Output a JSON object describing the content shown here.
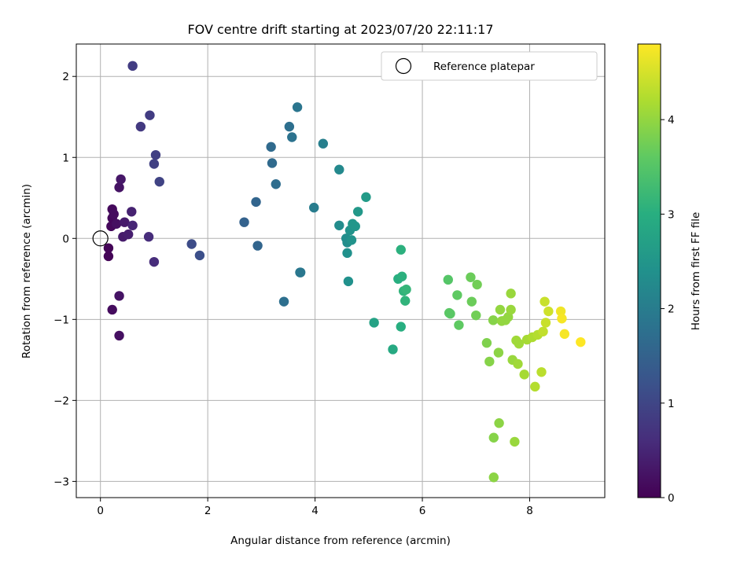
{
  "chart_data": {
    "type": "scatter",
    "title": "FOV centre drift starting at 2023/07/20 22:11:17",
    "xlabel": "Angular distance from reference (arcmin)",
    "ylabel": "Rotation from reference (arcmin)",
    "xlim": [
      -0.45,
      9.4
    ],
    "ylim": [
      -3.2,
      2.4
    ],
    "xticks": [
      0,
      2,
      4,
      6,
      8
    ],
    "yticks": [
      -3,
      -2,
      -1,
      0,
      1,
      2
    ],
    "xtick_labels": [
      "0",
      "2",
      "4",
      "6",
      "8"
    ],
    "ytick_labels": [
      "−3",
      "−2",
      "−1",
      "0",
      "1",
      "2"
    ],
    "grid": true,
    "legend": {
      "placement": "top-right",
      "entries": [
        "Reference platepar"
      ]
    },
    "reference_point": {
      "x": 0,
      "y": 0
    },
    "colorbar": {
      "label": "Hours from first FF file",
      "range": [
        0,
        4.8
      ],
      "ticks": [
        0,
        1,
        2,
        3,
        4
      ],
      "tick_labels": [
        "0",
        "1",
        "2",
        "3",
        "4"
      ],
      "colormap": "viridis"
    },
    "points": [
      {
        "x": 0.15,
        "y": -0.22,
        "c": 0.05
      },
      {
        "x": 0.15,
        "y": -0.12,
        "c": 0.05
      },
      {
        "x": 0.2,
        "y": 0.15,
        "c": 0.1
      },
      {
        "x": 0.22,
        "y": 0.25,
        "c": 0.1
      },
      {
        "x": 0.22,
        "y": 0.36,
        "c": 0.12
      },
      {
        "x": 0.25,
        "y": 0.3,
        "c": 0.15
      },
      {
        "x": 0.3,
        "y": 0.18,
        "c": 0.2
      },
      {
        "x": 0.35,
        "y": 0.63,
        "c": 0.25
      },
      {
        "x": 0.38,
        "y": 0.73,
        "c": 0.3
      },
      {
        "x": 0.22,
        "y": -0.88,
        "c": 0.15
      },
      {
        "x": 0.35,
        "y": -0.71,
        "c": 0.25
      },
      {
        "x": 0.35,
        "y": -1.2,
        "c": 0.2
      },
      {
        "x": 0.45,
        "y": 0.2,
        "c": 0.35
      },
      {
        "x": 0.42,
        "y": 0.02,
        "c": 0.35
      },
      {
        "x": 0.52,
        "y": 0.05,
        "c": 0.4
      },
      {
        "x": 0.58,
        "y": 0.33,
        "c": 0.45
      },
      {
        "x": 0.6,
        "y": 0.16,
        "c": 0.5
      },
      {
        "x": 0.9,
        "y": 0.02,
        "c": 0.6
      },
      {
        "x": 1.0,
        "y": -0.29,
        "c": 0.6
      },
      {
        "x": 0.6,
        "y": 2.13,
        "c": 0.85
      },
      {
        "x": 0.75,
        "y": 1.38,
        "c": 0.8
      },
      {
        "x": 0.92,
        "y": 1.52,
        "c": 0.85
      },
      {
        "x": 1.03,
        "y": 1.03,
        "c": 0.9
      },
      {
        "x": 1.0,
        "y": 0.92,
        "c": 0.9
      },
      {
        "x": 1.1,
        "y": 0.7,
        "c": 0.95
      },
      {
        "x": 1.7,
        "y": -0.07,
        "c": 1.1
      },
      {
        "x": 1.85,
        "y": -0.21,
        "c": 1.15
      },
      {
        "x": 2.68,
        "y": 0.2,
        "c": 1.5
      },
      {
        "x": 2.9,
        "y": 0.45,
        "c": 1.55
      },
      {
        "x": 2.93,
        "y": -0.09,
        "c": 1.55
      },
      {
        "x": 3.18,
        "y": 1.13,
        "c": 1.65
      },
      {
        "x": 3.2,
        "y": 0.93,
        "c": 1.65
      },
      {
        "x": 3.27,
        "y": 0.67,
        "c": 1.7
      },
      {
        "x": 3.42,
        "y": -0.78,
        "c": 1.75
      },
      {
        "x": 3.52,
        "y": 1.38,
        "c": 1.75
      },
      {
        "x": 3.57,
        "y": 1.25,
        "c": 1.8
      },
      {
        "x": 3.67,
        "y": 1.62,
        "c": 1.85
      },
      {
        "x": 3.72,
        "y": -0.42,
        "c": 1.9
      },
      {
        "x": 3.73,
        "y": -0.42,
        "c": 1.9
      },
      {
        "x": 3.98,
        "y": 0.38,
        "c": 2.0
      },
      {
        "x": 4.15,
        "y": 1.17,
        "c": 2.05
      },
      {
        "x": 4.45,
        "y": 0.85,
        "c": 2.25
      },
      {
        "x": 4.45,
        "y": 0.16,
        "c": 2.3
      },
      {
        "x": 4.58,
        "y": 0.0,
        "c": 2.35
      },
      {
        "x": 4.6,
        "y": -0.05,
        "c": 2.35
      },
      {
        "x": 4.6,
        "y": -0.18,
        "c": 2.4
      },
      {
        "x": 4.62,
        "y": -0.53,
        "c": 2.4
      },
      {
        "x": 4.65,
        "y": 0.1,
        "c": 2.45
      },
      {
        "x": 4.68,
        "y": -0.02,
        "c": 2.45
      },
      {
        "x": 4.7,
        "y": 0.18,
        "c": 2.5
      },
      {
        "x": 4.75,
        "y": 0.15,
        "c": 2.5
      },
      {
        "x": 4.8,
        "y": 0.33,
        "c": 2.55
      },
      {
        "x": 4.95,
        "y": 0.51,
        "c": 2.6
      },
      {
        "x": 5.1,
        "y": -1.04,
        "c": 2.75
      },
      {
        "x": 5.45,
        "y": -1.37,
        "c": 2.9
      },
      {
        "x": 5.55,
        "y": -0.5,
        "c": 3.0
      },
      {
        "x": 5.6,
        "y": -1.09,
        "c": 3.0
      },
      {
        "x": 5.6,
        "y": -0.14,
        "c": 3.05
      },
      {
        "x": 5.62,
        "y": -0.47,
        "c": 3.05
      },
      {
        "x": 5.65,
        "y": -0.65,
        "c": 3.1
      },
      {
        "x": 5.68,
        "y": -0.77,
        "c": 3.1
      },
      {
        "x": 5.7,
        "y": -0.63,
        "c": 3.15
      },
      {
        "x": 6.48,
        "y": -0.51,
        "c": 3.5
      },
      {
        "x": 6.5,
        "y": -0.92,
        "c": 3.55
      },
      {
        "x": 6.52,
        "y": -0.93,
        "c": 3.55
      },
      {
        "x": 6.65,
        "y": -0.7,
        "c": 3.6
      },
      {
        "x": 6.68,
        "y": -1.07,
        "c": 3.6
      },
      {
        "x": 6.9,
        "y": -0.48,
        "c": 3.7
      },
      {
        "x": 6.92,
        "y": -0.78,
        "c": 3.7
      },
      {
        "x": 7.0,
        "y": -0.95,
        "c": 3.75
      },
      {
        "x": 7.02,
        "y": -0.57,
        "c": 3.75
      },
      {
        "x": 7.2,
        "y": -1.29,
        "c": 3.85
      },
      {
        "x": 7.25,
        "y": -1.52,
        "c": 3.9
      },
      {
        "x": 7.32,
        "y": -1.01,
        "c": 3.9
      },
      {
        "x": 7.33,
        "y": -2.46,
        "c": 3.9
      },
      {
        "x": 7.33,
        "y": -2.95,
        "c": 3.95
      },
      {
        "x": 7.42,
        "y": -1.41,
        "c": 3.95
      },
      {
        "x": 7.43,
        "y": -2.28,
        "c": 3.95
      },
      {
        "x": 7.45,
        "y": -0.88,
        "c": 4.0
      },
      {
        "x": 7.48,
        "y": -1.02,
        "c": 4.0
      },
      {
        "x": 7.55,
        "y": -1.01,
        "c": 4.0
      },
      {
        "x": 7.6,
        "y": -0.97,
        "c": 4.0
      },
      {
        "x": 7.65,
        "y": -0.68,
        "c": 4.05
      },
      {
        "x": 7.65,
        "y": -0.88,
        "c": 4.05
      },
      {
        "x": 7.68,
        "y": -1.5,
        "c": 4.05
      },
      {
        "x": 7.72,
        "y": -2.51,
        "c": 4.05
      },
      {
        "x": 7.75,
        "y": -1.26,
        "c": 4.1
      },
      {
        "x": 7.78,
        "y": -1.55,
        "c": 4.1
      },
      {
        "x": 7.8,
        "y": -1.3,
        "c": 4.1
      },
      {
        "x": 7.9,
        "y": -1.68,
        "c": 4.15
      },
      {
        "x": 7.95,
        "y": -1.25,
        "c": 4.15
      },
      {
        "x": 8.05,
        "y": -1.22,
        "c": 4.2
      },
      {
        "x": 8.1,
        "y": -1.83,
        "c": 4.25
      },
      {
        "x": 8.15,
        "y": -1.19,
        "c": 4.25
      },
      {
        "x": 8.22,
        "y": -1.65,
        "c": 4.3
      },
      {
        "x": 8.25,
        "y": -1.15,
        "c": 4.35
      },
      {
        "x": 8.28,
        "y": -0.78,
        "c": 4.4
      },
      {
        "x": 8.3,
        "y": -1.04,
        "c": 4.4
      },
      {
        "x": 8.35,
        "y": -0.9,
        "c": 4.45
      },
      {
        "x": 8.58,
        "y": -0.9,
        "c": 4.7
      },
      {
        "x": 8.6,
        "y": -0.99,
        "c": 4.75
      },
      {
        "x": 8.65,
        "y": -1.18,
        "c": 4.75
      },
      {
        "x": 8.95,
        "y": -1.28,
        "c": 4.8
      }
    ]
  }
}
